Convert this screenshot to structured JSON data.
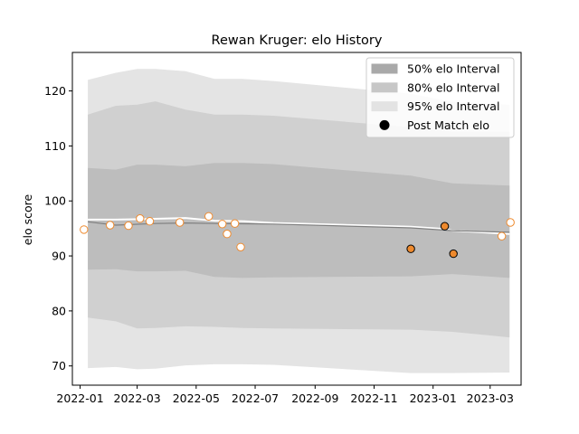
{
  "chart_data": {
    "type": "line",
    "title": "Rewan Kruger: elo History",
    "ylabel": "elo score",
    "xlabel": "",
    "x_range": [
      "2021-12-24",
      "2023-04-02"
    ],
    "ylim": [
      66.5,
      127
    ],
    "x_ticks": [
      "2022-01",
      "2022-03",
      "2022-05",
      "2022-07",
      "2022-09",
      "2022-11",
      "2023-01",
      "2023-03"
    ],
    "x_tick_dates": [
      "2022-01-01",
      "2022-03-01",
      "2022-05-01",
      "2022-07-01",
      "2022-09-01",
      "2022-11-01",
      "2023-01-01",
      "2023-03-01"
    ],
    "y_ticks": [
      70,
      80,
      90,
      100,
      110,
      120
    ],
    "grid": false,
    "legend_position": "top-right",
    "legend": [
      {
        "label": "50% elo Interval",
        "kind": "band",
        "color": "#a9a9a9"
      },
      {
        "label": "80% elo Interval",
        "kind": "band",
        "color": "#c7c7c7"
      },
      {
        "label": "95% elo Interval",
        "kind": "band",
        "color": "#e3e3e3"
      },
      {
        "label": "Post Match elo",
        "kind": "marker",
        "color": "#000000"
      }
    ],
    "colors": {
      "band50": "#bdbdbd",
      "band80": "#d0d0d0",
      "band95": "#e4e4e4",
      "mean_line": "#7f7f7f",
      "white_line": "#ffffff",
      "marker_fill": "#ee8a2e",
      "marker_edge_active": "#000000",
      "marker_edge_inactive": "#ee8a2e",
      "marker_fill_inactive": "#ffffff"
    },
    "band_x": [
      "2022-01-09",
      "2022-02-07",
      "2022-03-01",
      "2022-03-20",
      "2022-04-20",
      "2022-05-20",
      "2022-06-18",
      "2022-07-20",
      "2022-12-09",
      "2023-01-21",
      "2023-03-21"
    ],
    "band95_upper": [
      122,
      123.3,
      124,
      124,
      123.6,
      122.2,
      122.2,
      121.8,
      119.5,
      118,
      117.5
    ],
    "band95_lower": [
      69.6,
      69.8,
      69.4,
      69.5,
      70.1,
      70.3,
      70.3,
      70.2,
      68.7,
      68.7,
      68.8
    ],
    "band80_upper": [
      115.7,
      117.3,
      117.5,
      118.1,
      116.6,
      115.7,
      115.7,
      115.5,
      113.4,
      112.6,
      112.6
    ],
    "band80_lower": [
      78.8,
      78.1,
      76.8,
      76.9,
      77.2,
      77.1,
      76.9,
      76.8,
      76.6,
      76.2,
      75.2
    ],
    "band50_upper": [
      106,
      105.7,
      106.6,
      106.6,
      106.3,
      106.9,
      106.9,
      106.7,
      104.6,
      103.2,
      102.8
    ],
    "band50_lower": [
      87.5,
      87.6,
      87.2,
      87.2,
      87.3,
      86.2,
      86.0,
      86.1,
      86.3,
      86.7,
      86.0
    ],
    "mean_line": {
      "x": [
        "2022-01-09",
        "2022-02-07",
        "2022-03-20",
        "2022-04-20",
        "2022-05-20",
        "2022-07-20",
        "2022-12-09",
        "2023-01-21",
        "2023-03-21"
      ],
      "y": [
        96.2,
        95.6,
        95.9,
        96.0,
        95.9,
        95.8,
        95.1,
        94.6,
        94.3
      ]
    },
    "white_line": {
      "x": [
        "2022-01-09",
        "2022-02-07",
        "2022-03-10",
        "2022-04-20",
        "2022-05-20",
        "2022-06-20",
        "2022-07-20",
        "2022-12-09",
        "2023-01-13",
        "2023-01-21",
        "2023-03-21"
      ],
      "y": [
        96.6,
        96.6,
        96.7,
        96.9,
        96.4,
        96.3,
        96.0,
        95.3,
        94.9,
        94.6,
        94.0
      ]
    },
    "points": [
      {
        "x": "2022-01-05",
        "y": 94.8,
        "active": false
      },
      {
        "x": "2022-02-01",
        "y": 95.6,
        "active": false
      },
      {
        "x": "2022-02-20",
        "y": 95.5,
        "active": false
      },
      {
        "x": "2022-03-04",
        "y": 96.8,
        "active": false
      },
      {
        "x": "2022-03-14",
        "y": 96.3,
        "active": false
      },
      {
        "x": "2022-04-14",
        "y": 96.1,
        "active": false
      },
      {
        "x": "2022-05-14",
        "y": 97.2,
        "active": false
      },
      {
        "x": "2022-05-28",
        "y": 95.8,
        "active": false
      },
      {
        "x": "2022-06-02",
        "y": 94.0,
        "active": false
      },
      {
        "x": "2022-06-10",
        "y": 95.9,
        "active": false
      },
      {
        "x": "2022-06-16",
        "y": 91.6,
        "active": false
      },
      {
        "x": "2022-12-09",
        "y": 91.3,
        "active": true
      },
      {
        "x": "2023-01-13",
        "y": 95.4,
        "active": true
      },
      {
        "x": "2023-01-22",
        "y": 90.4,
        "active": true
      },
      {
        "x": "2023-03-13",
        "y": 93.6,
        "active": false
      },
      {
        "x": "2023-03-22",
        "y": 96.1,
        "active": false
      }
    ]
  }
}
